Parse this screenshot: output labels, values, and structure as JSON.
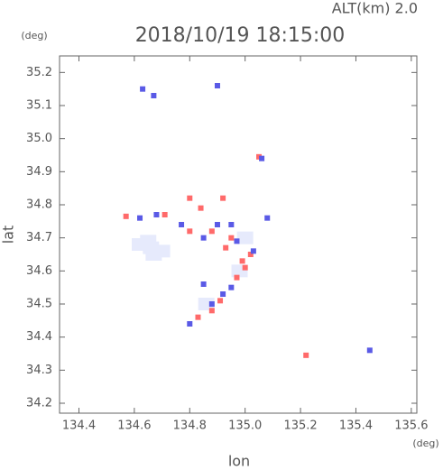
{
  "chart_data": {
    "type": "scatter",
    "title": "2018/10/19 18:15:00",
    "subtitle": "ALT(km) 2.0",
    "y_unit": "(deg)",
    "x_unit": "(deg)",
    "xlabel": "lon",
    "ylabel": "lat",
    "xlim": [
      134.33,
      135.62
    ],
    "ylim": [
      34.17,
      35.25
    ],
    "xticks": [
      134.4,
      134.6,
      134.8,
      {
        "value": 135.0,
        "label": "135.0"
      },
      135.2,
      135.4,
      135.6
    ],
    "yticks": [
      34.2,
      34.3,
      34.4,
      34.5,
      34.6,
      34.7,
      34.8,
      34.9,
      {
        "value": 35.0,
        "label": "35.0"
      },
      35.1,
      35.2
    ],
    "series": [
      {
        "color": "#e6eafc",
        "x": [
          134.62,
          134.66,
          134.7,
          134.65,
          134.67,
          134.98,
          135.0,
          134.86
        ],
        "y": [
          34.68,
          34.67,
          34.66,
          34.69,
          34.65,
          34.6,
          34.7,
          34.5
        ]
      },
      {
        "color": "#ff6a6a",
        "x": [
          134.57,
          134.8,
          134.84,
          134.8,
          134.88,
          134.92,
          134.93,
          135.05,
          135.02,
          135.0,
          134.97,
          134.91,
          134.88,
          134.83,
          135.22,
          134.71,
          134.95,
          134.99
        ],
        "y": [
          34.765,
          34.82,
          34.79,
          34.72,
          34.72,
          34.82,
          34.67,
          34.945,
          34.65,
          34.61,
          34.58,
          34.51,
          34.48,
          34.46,
          34.345,
          34.77,
          34.7,
          34.63
        ]
      },
      {
        "color": "#5a5ae6",
        "x": [
          134.62,
          134.68,
          134.63,
          134.67,
          134.77,
          134.85,
          134.9,
          134.95,
          134.97,
          135.03,
          134.95,
          134.88,
          134.92,
          134.8,
          135.06,
          135.08,
          135.45,
          134.9,
          134.85
        ],
        "y": [
          34.76,
          34.77,
          35.15,
          35.13,
          34.74,
          34.7,
          34.74,
          34.74,
          34.69,
          34.66,
          34.55,
          34.5,
          34.53,
          34.44,
          34.94,
          34.76,
          34.36,
          35.16,
          34.56
        ]
      }
    ]
  }
}
